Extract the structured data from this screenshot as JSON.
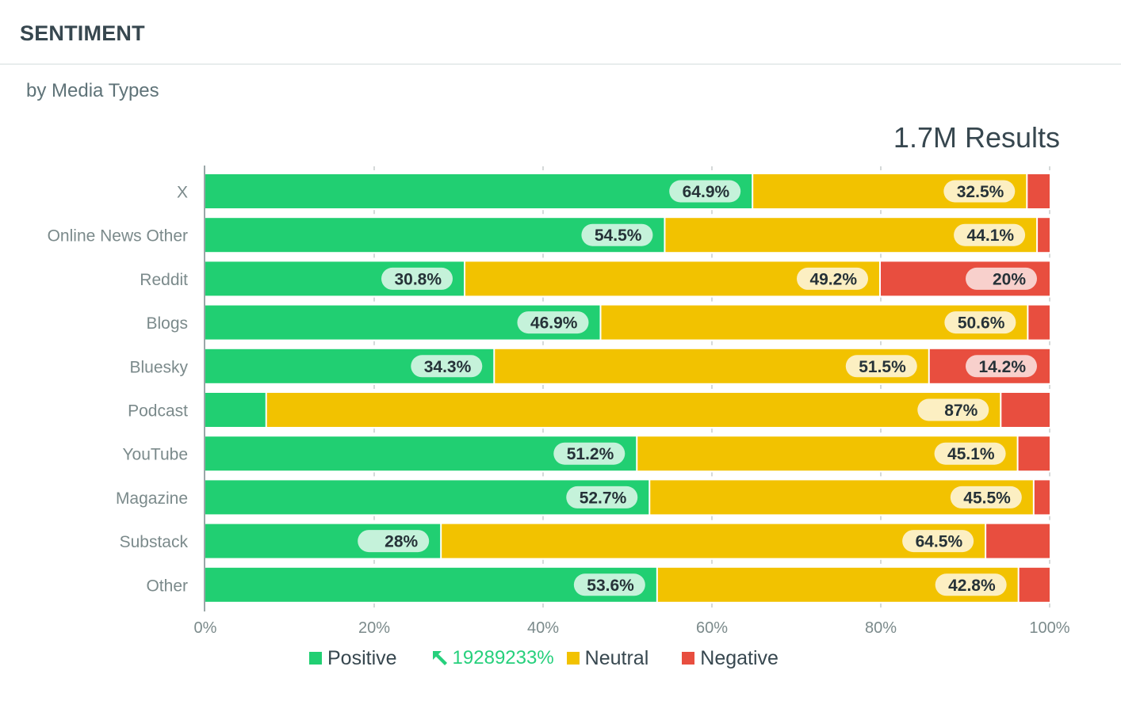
{
  "header": {
    "title": "SENTIMENT"
  },
  "subtitle": "by Media Types",
  "results": "1.7M Results",
  "colors": {
    "positive": "#21cf72",
    "neutral": "#f2c200",
    "negative": "#e84e3f",
    "positive_label_bg": "#c5f2da",
    "neutral_label_bg": "#fcefc2",
    "negative_label_bg": "#f8d0cc",
    "trend": "#26d07c"
  },
  "legend": {
    "positive": "Positive",
    "trend_icon": "arrow-up-left-icon",
    "trend_value": "19289233%",
    "neutral": "Neutral",
    "negative": "Negative"
  },
  "chart_data": {
    "type": "bar",
    "orientation": "horizontal",
    "stacked": "percent",
    "title": "SENTIMENT",
    "subtitle": "by Media Types",
    "xlabel": "",
    "ylabel": "",
    "xlim": [
      0,
      100
    ],
    "x_ticks": [
      "0%",
      "20%",
      "40%",
      "60%",
      "80%",
      "100%"
    ],
    "grid": false,
    "legend_position": "bottom",
    "categories": [
      "X",
      "Online News Other",
      "Reddit",
      "Blogs",
      "Bluesky",
      "Podcast",
      "YouTube",
      "Magazine",
      "Substack",
      "Other"
    ],
    "series": [
      {
        "name": "Positive",
        "values": [
          64.9,
          54.5,
          30.8,
          46.9,
          34.3,
          7.3,
          51.2,
          52.7,
          28,
          53.6
        ],
        "labels": [
          "64.9%",
          "54.5%",
          "30.8%",
          "46.9%",
          "34.3%",
          "",
          "51.2%",
          "52.7%",
          "28%",
          "53.6%"
        ]
      },
      {
        "name": "Neutral",
        "values": [
          32.5,
          44.1,
          49.2,
          50.6,
          51.5,
          87,
          45.1,
          45.5,
          64.5,
          42.8
        ],
        "labels": [
          "32.5%",
          "44.1%",
          "49.2%",
          "50.6%",
          "51.5%",
          "87%",
          "45.1%",
          "45.5%",
          "64.5%",
          "42.8%"
        ]
      },
      {
        "name": "Negative",
        "values": [
          2.6,
          1.4,
          20,
          2.5,
          14.2,
          5.7,
          3.7,
          1.8,
          7.5,
          3.6
        ],
        "labels": [
          "",
          "",
          "20%",
          "",
          "14.2%",
          "",
          "",
          "",
          "",
          ""
        ]
      }
    ]
  }
}
